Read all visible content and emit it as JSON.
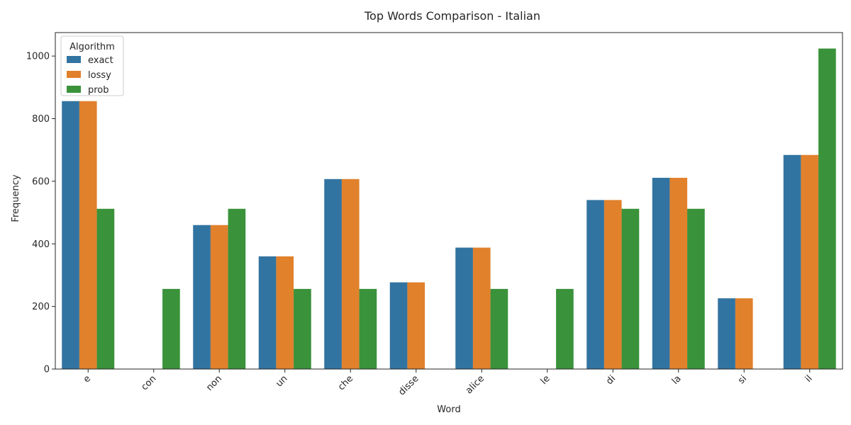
{
  "chart_data": {
    "type": "bar",
    "title": "Top Words Comparison - Italian",
    "xlabel": "Word",
    "ylabel": "Frequency",
    "categories": [
      "e",
      "con",
      "non",
      "un",
      "che",
      "disse",
      "alice",
      "le",
      "di",
      "la",
      "si",
      "il"
    ],
    "series": [
      {
        "name": "exact",
        "color": "#3274a1",
        "values": [
          856,
          0,
          460,
          360,
          607,
          277,
          388,
          0,
          540,
          611,
          226,
          684
        ]
      },
      {
        "name": "lossy",
        "color": "#e1812c",
        "values": [
          856,
          0,
          460,
          360,
          607,
          277,
          388,
          0,
          540,
          611,
          226,
          684
        ]
      },
      {
        "name": "prob",
        "color": "#3a923a",
        "values": [
          512,
          256,
          512,
          256,
          256,
          0,
          256,
          256,
          512,
          512,
          0,
          1024
        ]
      }
    ],
    "ylim": [
      0,
      1075
    ],
    "yticks": [
      0,
      200,
      400,
      600,
      800,
      1000
    ],
    "legend": {
      "title": "Algorithm",
      "position": "top-left"
    },
    "grid": false
  }
}
